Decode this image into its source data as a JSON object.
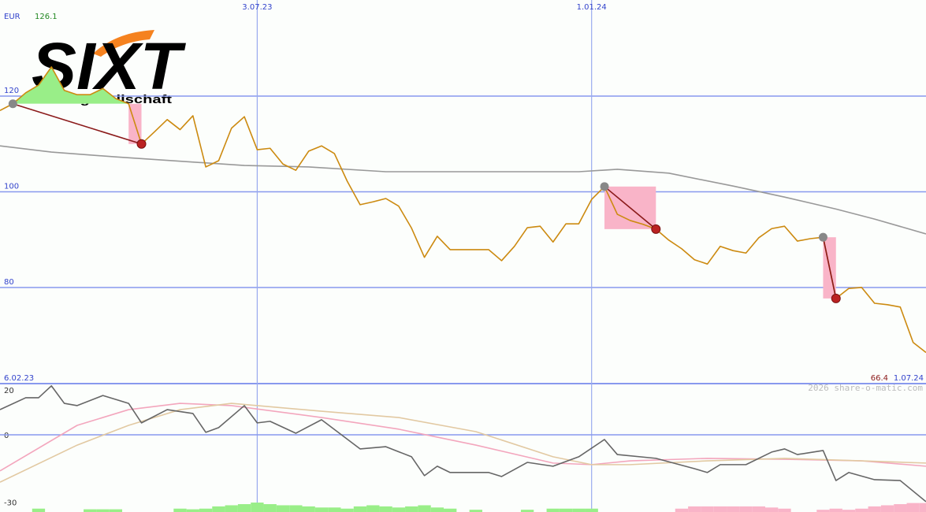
{
  "logo": {
    "name": "SIXT",
    "subtitle": "Aktiengesellschaft"
  },
  "watermark": "2026 share-o-matic.com",
  "chart_data": [
    {
      "type": "line",
      "currency": "EUR",
      "max_label": 126.1,
      "min_label": 66.4,
      "categories": [
        "6.02.23",
        null,
        null,
        null,
        null,
        null,
        null,
        null,
        null,
        null,
        null,
        null,
        null,
        null,
        null,
        null,
        null,
        null,
        null,
        null,
        "3.07.23",
        null,
        null,
        null,
        null,
        null,
        null,
        null,
        null,
        null,
        null,
        null,
        null,
        null,
        null,
        null,
        null,
        null,
        null,
        null,
        null,
        null,
        null,
        null,
        null,
        null,
        "1.01.24",
        null,
        null,
        null,
        null,
        null,
        null,
        null,
        null,
        null,
        null,
        null,
        null,
        null,
        null,
        null,
        null,
        null,
        null,
        null,
        null,
        null,
        null,
        null,
        null,
        null,
        "1.07.24"
      ],
      "series": [
        {
          "color": "#999999",
          "x": [
            0,
            4,
            9,
            19,
            24,
            30,
            39,
            45,
            48,
            52,
            57,
            61,
            65,
            68,
            72
          ],
          "values": [
            109.6,
            108.3,
            107.3,
            105.5,
            105.2,
            104.2,
            104.2,
            104.2,
            104.7,
            103.9,
            101.2,
            98.9,
            96.4,
            94.3,
            91.2
          ]
        },
        {
          "color": "#cc8a10",
          "values": [
            117.0,
            118.4,
            120.7,
            122.3,
            126.1,
            121.2,
            120.3,
            120.3,
            121.6,
            119.5,
            118.4,
            110.0,
            112.5,
            115.1,
            113.0,
            115.9,
            105.2,
            106.5,
            113.3,
            115.7,
            108.8,
            109.1,
            105.8,
            104.5,
            108.5,
            109.6,
            108.0,
            102.2,
            97.3,
            97.9,
            98.6,
            97.0,
            92.4,
            86.3,
            90.7,
            87.9,
            87.9,
            87.9,
            87.9,
            85.6,
            88.6,
            92.5,
            92.8,
            89.5,
            93.3,
            93.3,
            98.4,
            101.1,
            95.3,
            94.0,
            93.2,
            92.2,
            89.9,
            88.1,
            85.8,
            84.9,
            88.6,
            87.7,
            87.2,
            90.4,
            92.3,
            92.8,
            89.7,
            90.2,
            90.5,
            77.7,
            79.8,
            80.0,
            76.7,
            76.4,
            75.9,
            68.5,
            66.4
          ]
        }
      ],
      "signals": [
        {
          "from": 1,
          "to": 11
        },
        {
          "from": 47,
          "to": 51
        },
        {
          "from": 64,
          "to": 65
        }
      ],
      "signal_colors": {
        "start": "#888888",
        "end": "#bb2222",
        "line": "#8b1a1a",
        "gain": "#99ee88",
        "loss": "#f9b4c8"
      },
      "ylim": [
        59.9,
        140.1
      ],
      "yticks": [
        120,
        100,
        80
      ],
      "grid": true
    },
    {
      "type": "line",
      "series": [
        {
          "color": "#f3a6bd",
          "x": [
            0,
            6,
            10,
            14,
            18,
            25,
            31,
            37,
            43,
            46,
            49,
            55,
            61,
            67,
            72
          ],
          "values": [
            -16.1,
            4.2,
            11.2,
            14.0,
            13.0,
            7.7,
            2.5,
            -4.6,
            -12.6,
            -13.3,
            -11.6,
            -10.5,
            -10.9,
            -11.6,
            -14.0
          ]
        },
        {
          "color": "#e2c9a2",
          "x": [
            0,
            6,
            10,
            14,
            18,
            25,
            31,
            37,
            43,
            46,
            49,
            55,
            61,
            67,
            72
          ],
          "values": [
            -21.1,
            -4.6,
            4.2,
            11.2,
            14.0,
            10.5,
            7.7,
            1.4,
            -9.8,
            -13.3,
            -13.3,
            -11.6,
            -10.5,
            -11.6,
            -12.6
          ]
        },
        {
          "color": "#666666",
          "x": [
            0,
            2,
            3,
            4,
            5,
            6,
            8,
            10,
            11,
            13,
            15,
            16,
            17,
            19,
            20,
            21,
            23,
            25,
            28,
            30,
            32,
            33,
            34,
            35,
            38,
            39,
            41,
            43,
            45,
            47,
            48,
            51,
            54,
            55,
            56,
            58,
            60,
            61,
            62,
            64,
            65,
            66,
            68,
            70,
            72
          ],
          "values": [
            11.2,
            16.5,
            16.5,
            21.8,
            14.0,
            13.0,
            17.5,
            14.0,
            5.3,
            11.2,
            9.5,
            1.1,
            3.2,
            13.0,
            5.3,
            6.0,
            0.7,
            6.7,
            -6.3,
            -5.3,
            -9.8,
            -18.2,
            -14.0,
            -16.8,
            -16.8,
            -18.6,
            -12.3,
            -14.0,
            -9.8,
            -2.1,
            -8.8,
            -10.5,
            -15.1,
            -16.8,
            -13.3,
            -13.3,
            -7.7,
            -6.3,
            -8.8,
            -7.0,
            -20.4,
            -16.8,
            -20.0,
            -20.4,
            -29.8
          ]
        }
      ],
      "histogram": [
        0,
        0,
        0,
        1.5,
        0,
        0,
        0,
        1.2,
        1.2,
        1.2,
        0,
        0,
        0,
        0,
        1.5,
        1.2,
        1.5,
        2.5,
        3.0,
        3.5,
        4.2,
        3.5,
        3.0,
        3.0,
        2.5,
        2.0,
        2.0,
        1.5,
        2.5,
        3.0,
        2.5,
        2.0,
        2.5,
        3.0,
        2.0,
        1.5,
        0,
        1.0,
        0,
        0,
        0,
        1.0,
        0,
        1.5,
        1.5,
        1.5,
        1.5,
        0,
        0,
        0,
        0,
        0,
        0,
        -1.5,
        -2.5,
        -2.5,
        -2.5,
        -2.5,
        -2.5,
        -2.5,
        -2.0,
        -1.5,
        0,
        0,
        -1.0,
        -1.5,
        -1.0,
        -1.5,
        -2.5,
        -3.0,
        -3.5,
        -4.0,
        -4.0
      ],
      "histogram_colors": [
        "#99ee88",
        "#f9b4c8"
      ],
      "ylim": [
        -34.4,
        22.8
      ],
      "yticks": [
        20,
        0,
        -30
      ],
      "grid": [
        0
      ]
    }
  ]
}
